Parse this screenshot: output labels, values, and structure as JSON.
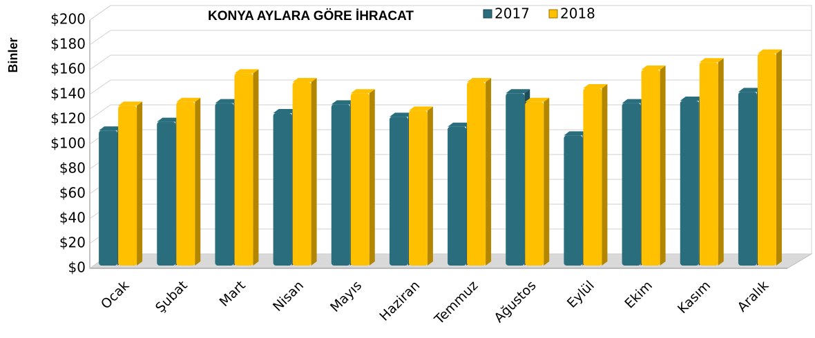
{
  "chart_data": {
    "type": "bar",
    "title": "KONYA AYLARA GÖRE İHRACAT",
    "y_label": "Binler",
    "categories": [
      "Ocak",
      "Şubat",
      "Mart",
      "Nisan",
      "Mayıs",
      "Haziran",
      "Temmuz",
      "Ağustos",
      "Eylül",
      "Ekim",
      "Kasım",
      "Aralık"
    ],
    "series": [
      {
        "name": "2017",
        "color": "#2a6e7e",
        "values": [
          111,
          118,
          133,
          125,
          132,
          122,
          114,
          141,
          107,
          133,
          135,
          142
        ]
      },
      {
        "name": "2018",
        "color": "#ffc000",
        "values": [
          131,
          134,
          157,
          150,
          141,
          127,
          150,
          134,
          145,
          160,
          166,
          173
        ]
      }
    ],
    "ylim": [
      0,
      200
    ],
    "yticks": [
      {
        "value": 0,
        "label": "$0"
      },
      {
        "value": 20,
        "label": "$20"
      },
      {
        "value": 40,
        "label": "$40"
      },
      {
        "value": 60,
        "label": "$60"
      },
      {
        "value": 80,
        "label": "$80"
      },
      {
        "value": 100,
        "label": "$100"
      },
      {
        "value": 120,
        "label": "$120"
      },
      {
        "value": 140,
        "label": "$140"
      },
      {
        "value": 160,
        "label": "$160"
      },
      {
        "value": 180,
        "label": "$180"
      },
      {
        "value": 200,
        "label": "$200"
      }
    ],
    "grid": true,
    "legend": "top"
  }
}
